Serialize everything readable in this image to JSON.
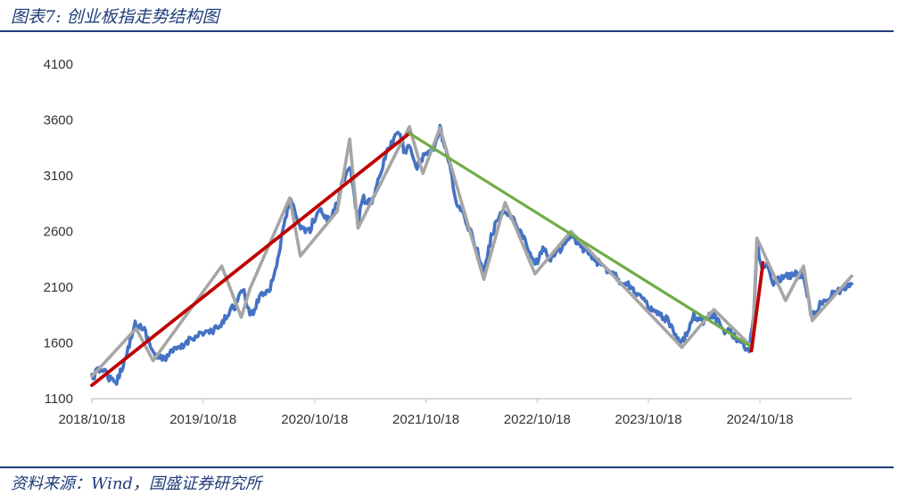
{
  "header": {
    "title": "图表7: 创业板指走势结构图"
  },
  "footer": {
    "source": "资料来源：Wind，国盛证券研究所"
  },
  "chart_data": {
    "type": "line",
    "title": "",
    "xlabel": "",
    "ylabel": "",
    "ylim": [
      1100,
      4100
    ],
    "xlim": [
      "2018-10-18",
      "2025-08-15"
    ],
    "grid": false,
    "legend": "none",
    "y_ticks": [
      1100,
      1600,
      2100,
      2600,
      3100,
      3600,
      4100
    ],
    "x_ticks": [
      "2018/10/18",
      "2019/10/18",
      "2020/10/18",
      "2021/10/18",
      "2022/10/18",
      "2023/10/18",
      "2024/10/18"
    ],
    "colors": {
      "index": "#4472c4",
      "structure": "#a6a6a6",
      "up_trend": "#c00000",
      "down_trend": "#70ad47"
    },
    "series": [
      {
        "key": "index",
        "x": [
          "2018-10-18",
          "2018-11-20",
          "2018-12-25",
          "2019-01-03",
          "2019-02-10",
          "2019-03-05",
          "2019-04-08",
          "2019-05-10",
          "2019-06-06",
          "2019-07-15",
          "2019-08-09",
          "2019-09-10",
          "2019-10-18",
          "2019-11-20",
          "2019-12-20",
          "2020-01-14",
          "2020-02-03",
          "2020-02-25",
          "2020-03-23",
          "2020-04-20",
          "2020-05-25",
          "2020-06-15",
          "2020-07-13",
          "2020-07-31",
          "2020-08-25",
          "2020-09-29",
          "2020-10-15",
          "2020-11-03",
          "2020-12-01",
          "2020-12-31",
          "2021-01-15",
          "2021-02-10",
          "2021-03-09",
          "2021-03-24",
          "2021-04-20",
          "2021-05-10",
          "2021-06-10",
          "2021-07-22",
          "2021-08-10",
          "2021-08-25",
          "2021-09-15",
          "2021-10-18",
          "2021-11-17",
          "2021-12-03",
          "2021-12-31",
          "2022-01-27",
          "2022-03-15",
          "2022-04-26",
          "2022-05-20",
          "2022-06-15",
          "2022-07-05",
          "2022-08-15",
          "2022-09-01",
          "2022-10-11",
          "2022-11-10",
          "2022-12-01",
          "2023-01-10",
          "2023-02-06",
          "2023-03-10",
          "2023-04-25",
          "2023-05-20",
          "2023-06-20",
          "2023-07-20",
          "2023-08-25",
          "2023-09-25",
          "2023-10-23",
          "2023-11-20",
          "2023-12-20",
          "2024-01-20",
          "2024-02-05",
          "2024-03-15",
          "2024-04-15",
          "2024-05-20",
          "2024-06-20",
          "2024-07-10",
          "2024-08-15",
          "2024-09-13",
          "2024-09-27",
          "2024-10-08",
          "2024-10-20",
          "2024-11-10",
          "2024-12-01",
          "2025-01-10",
          "2025-02-20",
          "2025-03-10",
          "2025-04-07",
          "2025-04-20",
          "2025-05-20",
          "2025-06-20",
          "2025-07-15",
          "2025-08-15"
        ],
        "values": [
          1290,
          1380,
          1250,
          1225,
          1500,
          1770,
          1720,
          1500,
          1450,
          1530,
          1560,
          1650,
          1690,
          1700,
          1770,
          1900,
          1940,
          2080,
          1830,
          2020,
          2100,
          2300,
          2700,
          2900,
          2650,
          2600,
          2700,
          2800,
          2700,
          2850,
          3030,
          3200,
          2680,
          2900,
          2850,
          3000,
          3300,
          3500,
          3300,
          3400,
          3150,
          3300,
          3360,
          3520,
          3230,
          2850,
          2600,
          2230,
          2550,
          2750,
          2800,
          2650,
          2550,
          2300,
          2450,
          2350,
          2470,
          2550,
          2470,
          2350,
          2280,
          2250,
          2150,
          2100,
          2000,
          1900,
          1850,
          1800,
          1620,
          1600,
          1850,
          1800,
          1860,
          1700,
          1720,
          1590,
          1550,
          1820,
          2480,
          2300,
          2300,
          2150,
          2200,
          2220,
          2200,
          1830,
          1900,
          2000,
          2050,
          2070,
          2130
        ]
      },
      {
        "key": "structure",
        "x": [
          "2018-10-18",
          "2019-03-12",
          "2019-05-07",
          "2019-12-18",
          "2020-02-20",
          "2020-03-20",
          "2020-07-28",
          "2020-09-01",
          "2020-12-31",
          "2021-02-10",
          "2021-03-09",
          "2021-08-25",
          "2021-10-08",
          "2021-12-03",
          "2022-04-26",
          "2022-07-05",
          "2022-10-11",
          "2023-02-06",
          "2024-02-05",
          "2024-05-20",
          "2024-09-23",
          "2024-10-08",
          "2025-01-10",
          "2025-03-10",
          "2025-04-07",
          "2025-08-15"
        ],
        "values": [
          1300,
          1730,
          1440,
          2290,
          1830,
          2090,
          2900,
          2380,
          2780,
          3430,
          2630,
          3540,
          3120,
          3530,
          2170,
          2860,
          2220,
          2600,
          1560,
          1900,
          1560,
          2540,
          1980,
          2290,
          1800,
          2200
        ]
      },
      {
        "key": "up_trend",
        "x": [
          "2018-10-18",
          "2021-08-25"
        ],
        "values": [
          1220,
          3480
        ]
      },
      {
        "key": "down_trend",
        "x": [
          "2021-08-25",
          "2024-09-23"
        ],
        "values": [
          3480,
          1560
        ]
      },
      {
        "key": "up_trend",
        "x": [
          "2024-09-20",
          "2024-10-28"
        ],
        "values": [
          1530,
          2320
        ]
      }
    ]
  }
}
